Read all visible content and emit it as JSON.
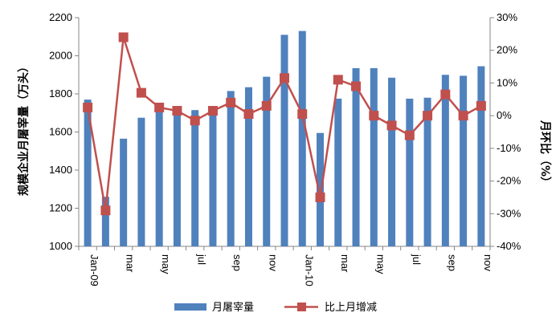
{
  "chart_data": {
    "type": "bar",
    "categories": [
      "Jan-09",
      "",
      "mar",
      "",
      "may",
      "",
      "jul",
      "",
      "sep",
      "",
      "nov",
      "",
      "Jan-10",
      "",
      "mar",
      "",
      "may",
      "",
      "jul",
      "",
      "sep",
      "",
      "nov"
    ],
    "series": [
      {
        "name": "月屠宰量",
        "kind": "bar",
        "axis": "left",
        "color": "#4F81BD",
        "values": [
          1770,
          1260,
          1565,
          1675,
          1730,
          1715,
          1715,
          1735,
          1815,
          1835,
          1890,
          2110,
          2130,
          1595,
          1775,
          1935,
          1935,
          1885,
          1775,
          1780,
          1900,
          1895,
          1945
        ]
      },
      {
        "name": "比上月增减",
        "kind": "line",
        "axis": "right",
        "color": "#C0504D",
        "values": [
          2.5,
          -29,
          24,
          7,
          2.5,
          1.5,
          -1.5,
          1.5,
          4,
          0.5,
          3,
          11.5,
          0.5,
          -25,
          11,
          9,
          0,
          -3,
          -6,
          0,
          6.5,
          0,
          3
        ]
      }
    ],
    "ylabel": "规模企业月屠宰量（万头）",
    "y2label": "月环比（%）",
    "ylim": [
      1000,
      2200
    ],
    "yticks": [
      "1000",
      "1200",
      "1400",
      "1600",
      "1800",
      "2000",
      "2200"
    ],
    "y2lim": [
      -40,
      30
    ],
    "y2ticks": [
      "-40%",
      "-30%",
      "-20%",
      "-10%",
      "0%",
      "10%",
      "20%",
      "30%"
    ],
    "grid": false,
    "legend": "bottom"
  }
}
